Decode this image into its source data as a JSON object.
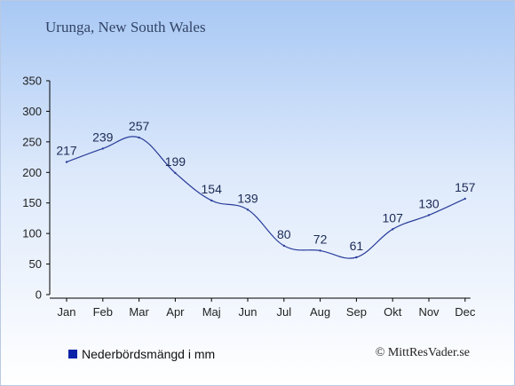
{
  "header": {
    "title": "Urunga, New South Wales"
  },
  "legend": {
    "label": "Nederbördsmängd i mm",
    "swatch_color": "#0a23a8"
  },
  "footer": {
    "credit": "© MittResVader.se"
  },
  "colors": {
    "line": "#2a3e9a",
    "label": "#1b2a55",
    "axis": "#000000"
  },
  "chart_data": {
    "type": "line",
    "title": "Urunga, New South Wales",
    "xlabel": "",
    "ylabel": "",
    "categories": [
      "Jan",
      "Feb",
      "Mar",
      "Apr",
      "Maj",
      "Jun",
      "Jul",
      "Aug",
      "Sep",
      "Okt",
      "Nov",
      "Dec"
    ],
    "series": [
      {
        "name": "Nederbördsmängd i mm",
        "values": [
          217,
          239,
          257,
          199,
          154,
          139,
          80,
          72,
          61,
          107,
          130,
          157
        ]
      }
    ],
    "ylim": [
      0,
      350
    ],
    "yticks": [
      0,
      50,
      100,
      150,
      200,
      250,
      300,
      350
    ],
    "grid": false,
    "data_labels": true,
    "legend_position": "bottom-left"
  }
}
